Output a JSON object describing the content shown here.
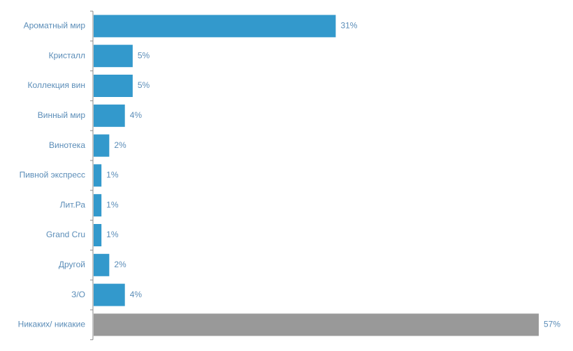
{
  "chart_data": {
    "type": "bar",
    "orientation": "horizontal",
    "categories": [
      "Ароматный мир",
      "Кристалл",
      "Коллекция вин",
      "Винный мир",
      "Винотека",
      "Пивной экспресс",
      "Лит.Ра",
      "Grand Cru",
      "Другой",
      "З/О",
      "Никаких/ никакие"
    ],
    "values": [
      31,
      5,
      5,
      4,
      2,
      1,
      1,
      1,
      2,
      4,
      57
    ],
    "value_labels": [
      "31%",
      "5%",
      "5%",
      "4%",
      "2%",
      "1%",
      "1%",
      "1%",
      "2%",
      "4%",
      "57%"
    ],
    "colors": [
      "#3399cc",
      "#3399cc",
      "#3399cc",
      "#3399cc",
      "#3399cc",
      "#3399cc",
      "#3399cc",
      "#3399cc",
      "#3399cc",
      "#3399cc",
      "#999999"
    ]
  }
}
